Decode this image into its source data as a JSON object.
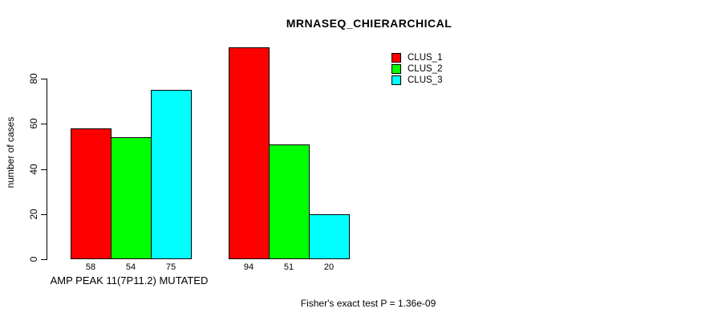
{
  "chart_data": {
    "type": "bar",
    "title": "MRNASEQ_CHIERARCHICAL",
    "ylabel": "number of cases",
    "xlabel": "AMP PEAK 11(7P11.2) MUTATED",
    "footnote": "Fisher's exact test P = 1.36e-09",
    "categories": [
      "AMP PEAK 11(7P11.2) MUTATED",
      ""
    ],
    "series": [
      {
        "name": "CLUS_1",
        "color": "#ff0000",
        "values": [
          58,
          94
        ]
      },
      {
        "name": "CLUS_2",
        "color": "#00ff00",
        "values": [
          54,
          51
        ]
      },
      {
        "name": "CLUS_3",
        "color": "#00ffff",
        "values": [
          75,
          20
        ]
      }
    ],
    "yticks": [
      0,
      20,
      40,
      60,
      80
    ],
    "ylim": [
      0,
      95
    ],
    "grid": false,
    "legend_position": "top-right",
    "bar_border_color": "#000000",
    "axis_color": "#000000",
    "text_color": "#000000",
    "background_color": "#ffffff"
  }
}
